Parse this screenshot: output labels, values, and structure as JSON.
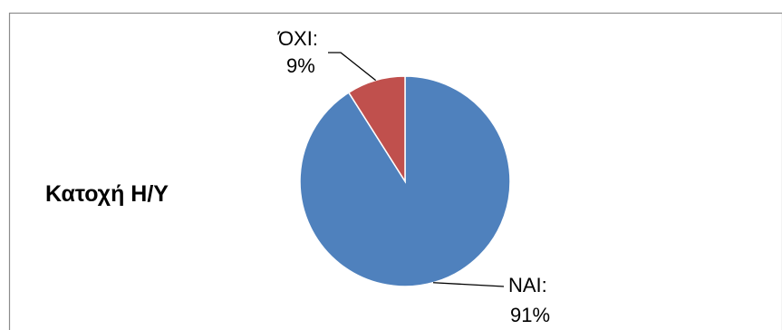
{
  "chart_data": {
    "type": "pie",
    "title": "Κατοχή Η/Υ",
    "slices": [
      {
        "label": "ΝΑΙ",
        "value": 91,
        "data_label": "ΝΑΙ:",
        "percent_label": "91%",
        "color": "#4F81BD"
      },
      {
        "label": "ΌΧΙ",
        "value": 9,
        "data_label": "ΌΧΙ:",
        "percent_label": "9%",
        "color": "#C0504D"
      }
    ],
    "legend": false,
    "leader_lines": true
  },
  "colors": {
    "frame_border": "#8c8c8c",
    "slice_edge": "#ffffff",
    "leader_line": "#000000"
  }
}
